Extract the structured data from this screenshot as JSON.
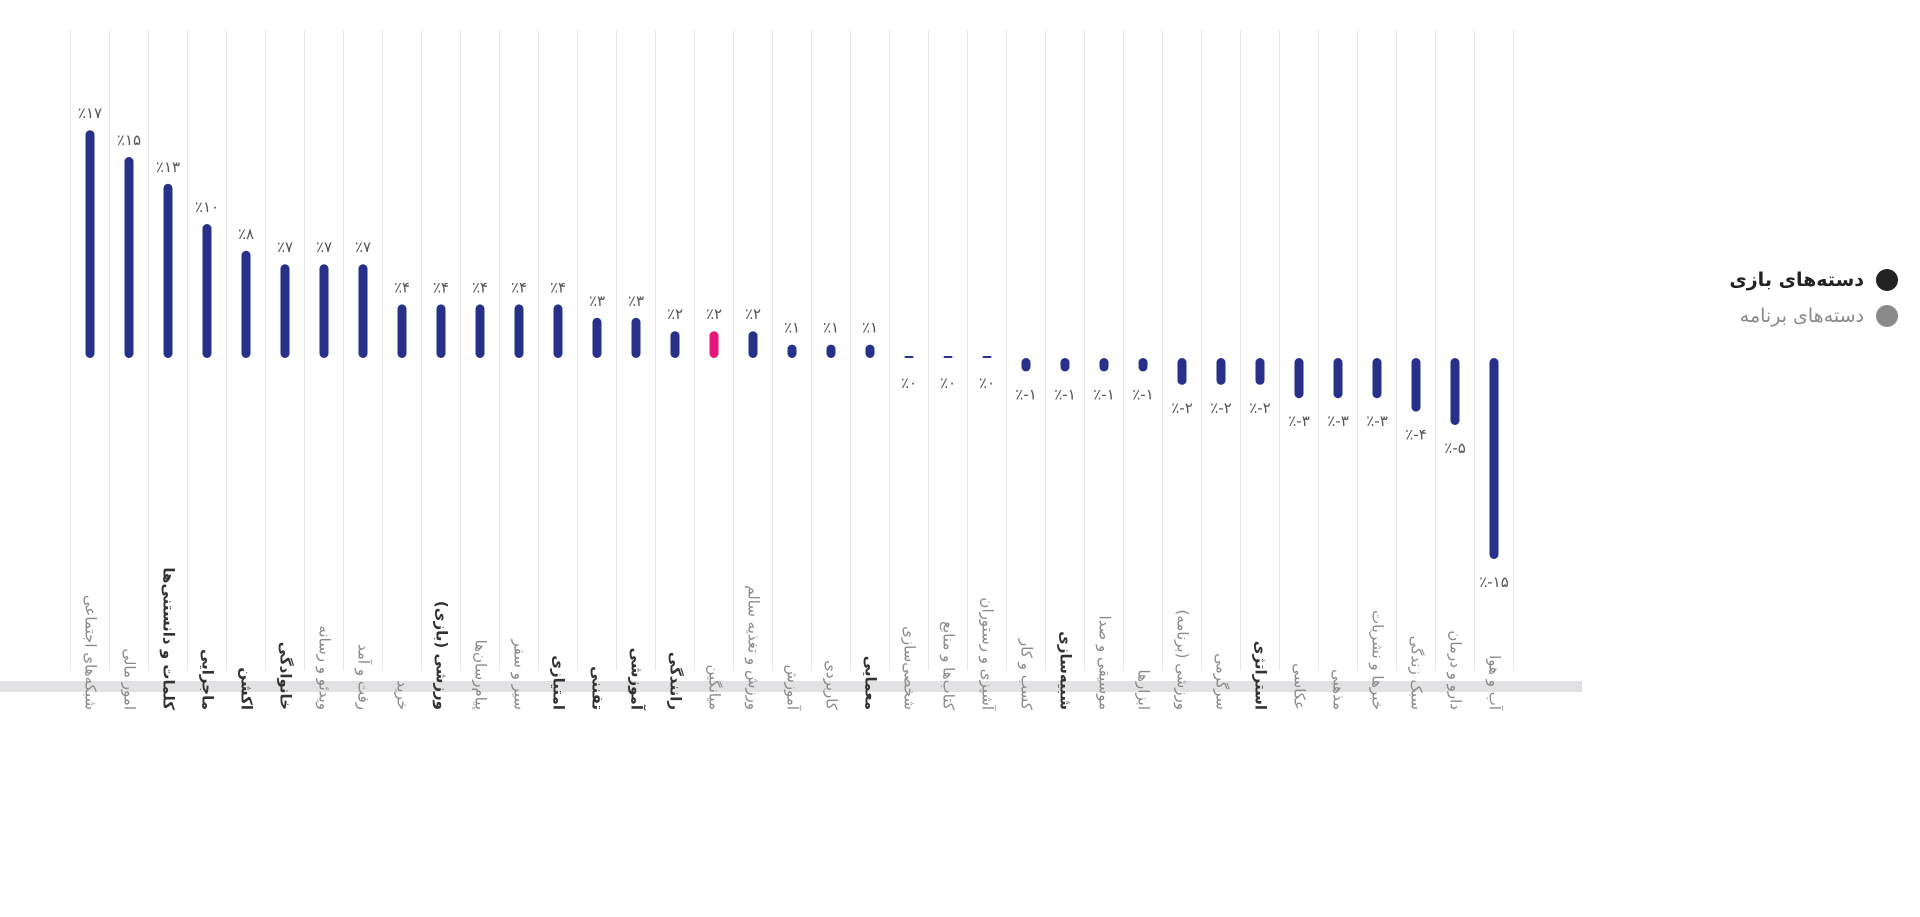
{
  "legend": {
    "game_label": "دسته‌های بازی",
    "app_label": "دسته‌های برنامه",
    "game_color": "#222222",
    "app_color": "#8a8a8a"
  },
  "chart_data": {
    "type": "bar",
    "title": "",
    "xlabel": "",
    "ylabel": "",
    "ylim": [
      -15,
      17
    ],
    "grid": true,
    "legend_position": "right",
    "bar_color": "#27318a",
    "highlight_color": "#e6177a",
    "categories": [
      "شبکه‌های اجتماعی",
      "امور مالی",
      "کلمات و دانستنی‌ها",
      "ماجرایی",
      "اکشن",
      "خانوادگی",
      "ویدئو و رسانه",
      "رفت و آمد",
      "خرید",
      "ورزشی (بازی)",
      "پیام‌رسان‌ها",
      "سیر و سفر",
      "امتیازی",
      "تفننی",
      "آموزشی",
      "رانندگی",
      "میانگین",
      "ورزش و تغذیه سالم",
      "آموزش",
      "کاربردی",
      "معمایی",
      "شخصی‌سازی",
      "کتاب‌ها و منابع",
      "آشپزی و رستوران",
      "کسب و کار",
      "شبیه‌سازی",
      "موسیقی و صدا",
      "ابزارها",
      "ورزشی (برنامه)",
      "سرگرمی",
      "استراتژی",
      "عکاسی",
      "مذهبی",
      "خبرها و نشریات",
      "سبک زندگی",
      "دارو و درمان",
      "آب و هوا"
    ],
    "category_group": [
      "app",
      "app",
      "game",
      "game",
      "game",
      "game",
      "app",
      "app",
      "app",
      "game",
      "app",
      "app",
      "game",
      "game",
      "game",
      "game",
      "average",
      "app",
      "app",
      "app",
      "game",
      "app",
      "app",
      "app",
      "app",
      "game",
      "app",
      "app",
      "app",
      "app",
      "game",
      "app",
      "app",
      "app",
      "app",
      "app",
      "app"
    ],
    "values": [
      17,
      15,
      13,
      10,
      8,
      7,
      7,
      7,
      4,
      4,
      4,
      4,
      4,
      3,
      3,
      2,
      2,
      2,
      1,
      1,
      1,
      0,
      0,
      0,
      -1,
      -1,
      -1,
      -1,
      -2,
      -2,
      -2,
      -3,
      -3,
      -3,
      -4,
      -5,
      -15
    ],
    "value_labels": [
      "٪۱۷",
      "٪۱۵",
      "٪۱۳",
      "٪۱۰",
      "٪۸",
      "٪۷",
      "٪۷",
      "٪۷",
      "٪۴",
      "٪۴",
      "٪۴",
      "٪۴",
      "٪۴",
      "٪۳",
      "٪۳",
      "٪۲",
      "٪۲",
      "٪۲",
      "٪۱",
      "٪۱",
      "٪۱",
      "٪۰",
      "٪۰",
      "٪۰",
      "٪-۱",
      "٪-۱",
      "٪-۱",
      "٪-۱",
      "٪-۲",
      "٪-۲",
      "٪-۲",
      "٪-۳",
      "٪-۳",
      "٪-۳",
      "٪-۴",
      "٪-۵",
      "٪-۱۵"
    ],
    "highlight_index": 16
  }
}
